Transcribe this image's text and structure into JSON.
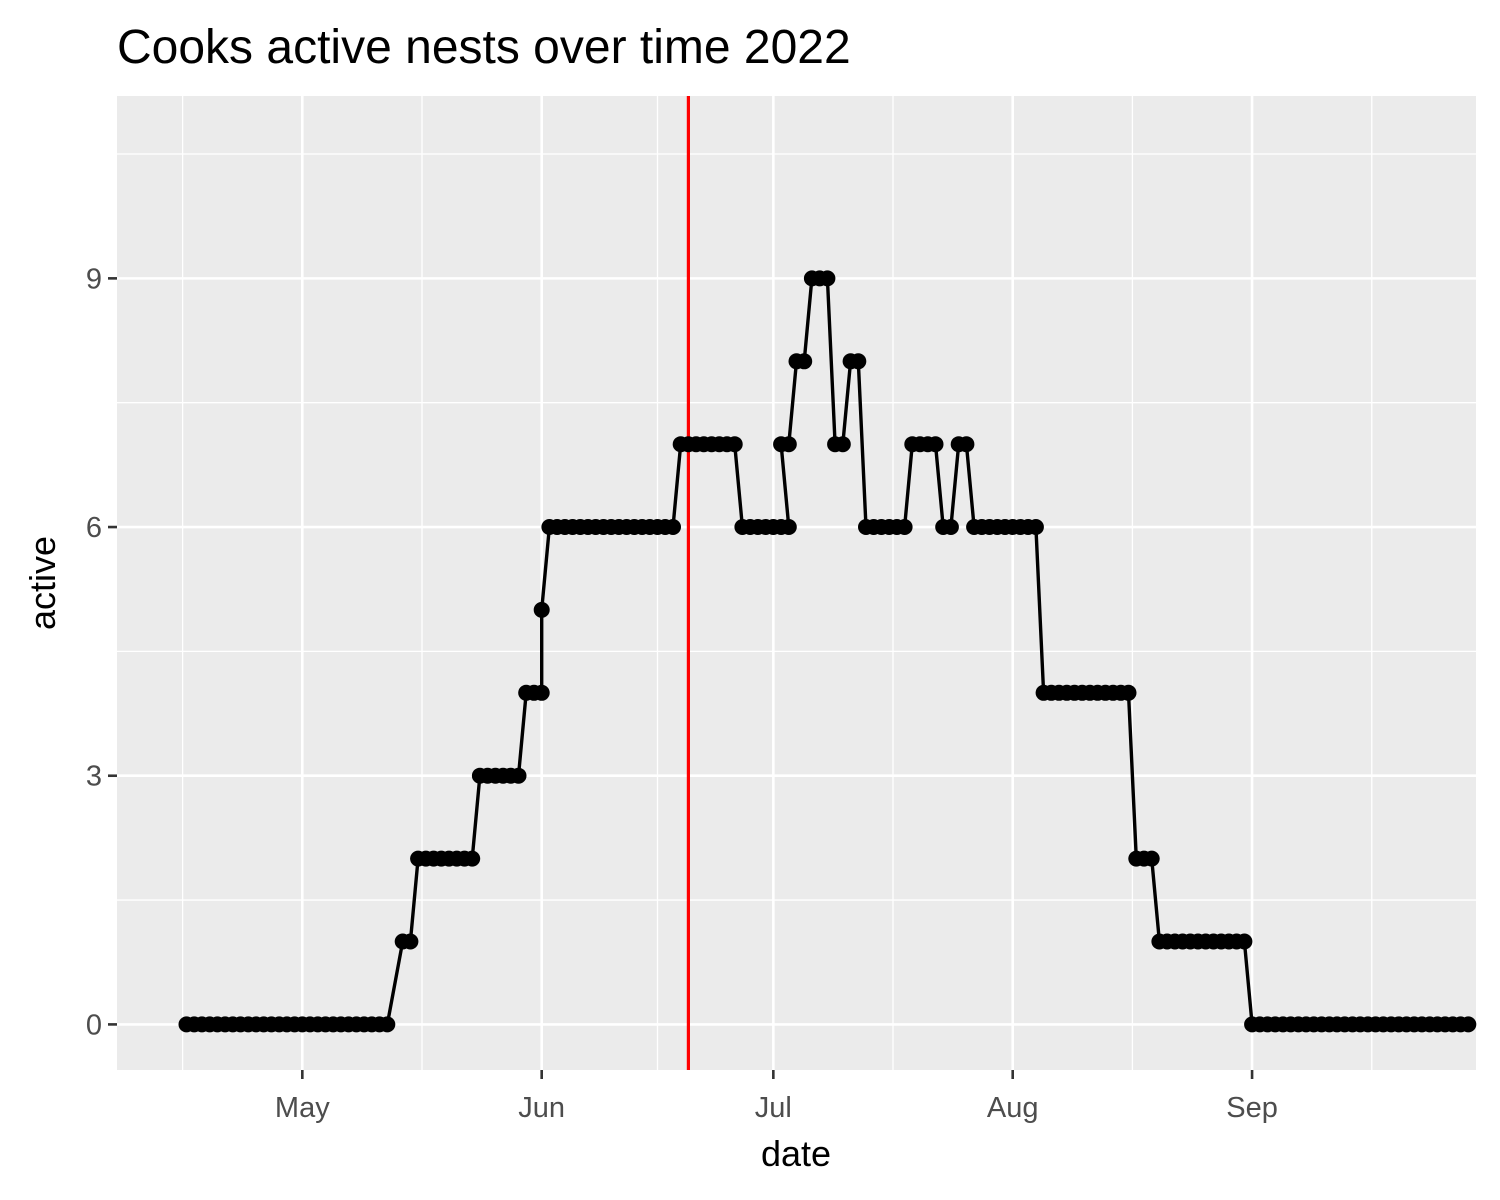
{
  "chart_data": {
    "type": "line",
    "title": "Cooks active nests over time 2022",
    "xlabel": "date",
    "ylabel": "active",
    "xlim": [
      "2022-04-07",
      "2022-09-30"
    ],
    "ylim": [
      -0.55,
      11.2
    ],
    "x_ticks": [
      {
        "date": "2022-05-01",
        "label": "May"
      },
      {
        "date": "2022-06-01",
        "label": "Jun"
      },
      {
        "date": "2022-07-01",
        "label": "Jul"
      },
      {
        "date": "2022-08-01",
        "label": "Aug"
      },
      {
        "date": "2022-09-01",
        "label": "Sep"
      }
    ],
    "y_ticks": [
      0,
      3,
      6,
      9
    ],
    "grid": true,
    "reference_line": {
      "date": "2022-06-20",
      "color": "#ff0000"
    },
    "series": [
      {
        "line_color": "#000000",
        "point_color": "#000000",
        "points": [
          [
            "2022-04-16",
            0
          ],
          [
            "2022-04-17",
            0
          ],
          [
            "2022-04-18",
            0
          ],
          [
            "2022-04-19",
            0
          ],
          [
            "2022-04-20",
            0
          ],
          [
            "2022-04-21",
            0
          ],
          [
            "2022-04-22",
            0
          ],
          [
            "2022-04-23",
            0
          ],
          [
            "2022-04-24",
            0
          ],
          [
            "2022-04-25",
            0
          ],
          [
            "2022-04-26",
            0
          ],
          [
            "2022-04-27",
            0
          ],
          [
            "2022-04-28",
            0
          ],
          [
            "2022-04-29",
            0
          ],
          [
            "2022-04-30",
            0
          ],
          [
            "2022-05-01",
            0
          ],
          [
            "2022-05-02",
            0
          ],
          [
            "2022-05-03",
            0
          ],
          [
            "2022-05-04",
            0
          ],
          [
            "2022-05-05",
            0
          ],
          [
            "2022-05-06",
            0
          ],
          [
            "2022-05-07",
            0
          ],
          [
            "2022-05-08",
            0
          ],
          [
            "2022-05-09",
            0
          ],
          [
            "2022-05-10",
            0
          ],
          [
            "2022-05-11",
            0
          ],
          [
            "2022-05-12",
            0
          ],
          [
            "2022-05-14",
            1
          ],
          [
            "2022-05-15",
            1
          ],
          [
            "2022-05-16",
            2
          ],
          [
            "2022-05-17",
            2
          ],
          [
            "2022-05-18",
            2
          ],
          [
            "2022-05-19",
            2
          ],
          [
            "2022-05-20",
            2
          ],
          [
            "2022-05-21",
            2
          ],
          [
            "2022-05-22",
            2
          ],
          [
            "2022-05-23",
            2
          ],
          [
            "2022-05-24",
            3
          ],
          [
            "2022-05-25",
            3
          ],
          [
            "2022-05-26",
            3
          ],
          [
            "2022-05-27",
            3
          ],
          [
            "2022-05-28",
            3
          ],
          [
            "2022-05-29",
            3
          ],
          [
            "2022-05-30",
            4
          ],
          [
            "2022-05-31",
            4
          ],
          [
            "2022-06-01",
            4
          ],
          [
            "2022-06-01",
            5
          ],
          [
            "2022-06-02",
            6
          ],
          [
            "2022-06-03",
            6
          ],
          [
            "2022-06-04",
            6
          ],
          [
            "2022-06-05",
            6
          ],
          [
            "2022-06-06",
            6
          ],
          [
            "2022-06-07",
            6
          ],
          [
            "2022-06-08",
            6
          ],
          [
            "2022-06-09",
            6
          ],
          [
            "2022-06-10",
            6
          ],
          [
            "2022-06-11",
            6
          ],
          [
            "2022-06-12",
            6
          ],
          [
            "2022-06-13",
            6
          ],
          [
            "2022-06-14",
            6
          ],
          [
            "2022-06-15",
            6
          ],
          [
            "2022-06-16",
            6
          ],
          [
            "2022-06-17",
            6
          ],
          [
            "2022-06-18",
            6
          ],
          [
            "2022-06-19",
            7
          ],
          [
            "2022-06-20",
            7
          ],
          [
            "2022-06-21",
            7
          ],
          [
            "2022-06-22",
            7
          ],
          [
            "2022-06-23",
            7
          ],
          [
            "2022-06-24",
            7
          ],
          [
            "2022-06-25",
            7
          ],
          [
            "2022-06-26",
            7
          ],
          [
            "2022-06-27",
            6
          ],
          [
            "2022-06-28",
            6
          ],
          [
            "2022-06-29",
            6
          ],
          [
            "2022-06-30",
            6
          ],
          [
            "2022-07-01",
            6
          ],
          [
            "2022-07-02",
            6
          ],
          [
            "2022-07-03",
            6
          ],
          [
            "2022-07-02",
            7
          ],
          [
            "2022-07-03",
            7
          ],
          [
            "2022-07-04",
            8
          ],
          [
            "2022-07-05",
            8
          ],
          [
            "2022-07-06",
            9
          ],
          [
            "2022-07-07",
            9
          ],
          [
            "2022-07-08",
            9
          ],
          [
            "2022-07-09",
            7
          ],
          [
            "2022-07-10",
            7
          ],
          [
            "2022-07-11",
            8
          ],
          [
            "2022-07-12",
            8
          ],
          [
            "2022-07-13",
            6
          ],
          [
            "2022-07-14",
            6
          ],
          [
            "2022-07-15",
            6
          ],
          [
            "2022-07-16",
            6
          ],
          [
            "2022-07-17",
            6
          ],
          [
            "2022-07-18",
            6
          ],
          [
            "2022-07-19",
            7
          ],
          [
            "2022-07-20",
            7
          ],
          [
            "2022-07-21",
            7
          ],
          [
            "2022-07-22",
            7
          ],
          [
            "2022-07-23",
            6
          ],
          [
            "2022-07-24",
            6
          ],
          [
            "2022-07-25",
            7
          ],
          [
            "2022-07-26",
            7
          ],
          [
            "2022-07-27",
            6
          ],
          [
            "2022-07-28",
            6
          ],
          [
            "2022-07-29",
            6
          ],
          [
            "2022-07-30",
            6
          ],
          [
            "2022-07-31",
            6
          ],
          [
            "2022-08-01",
            6
          ],
          [
            "2022-08-02",
            6
          ],
          [
            "2022-08-03",
            6
          ],
          [
            "2022-08-04",
            6
          ],
          [
            "2022-08-05",
            4
          ],
          [
            "2022-08-06",
            4
          ],
          [
            "2022-08-07",
            4
          ],
          [
            "2022-08-08",
            4
          ],
          [
            "2022-08-09",
            4
          ],
          [
            "2022-08-10",
            4
          ],
          [
            "2022-08-11",
            4
          ],
          [
            "2022-08-12",
            4
          ],
          [
            "2022-08-13",
            4
          ],
          [
            "2022-08-14",
            4
          ],
          [
            "2022-08-15",
            4
          ],
          [
            "2022-08-16",
            4
          ],
          [
            "2022-08-17",
            2
          ],
          [
            "2022-08-18",
            2
          ],
          [
            "2022-08-19",
            2
          ],
          [
            "2022-08-20",
            1
          ],
          [
            "2022-08-21",
            1
          ],
          [
            "2022-08-22",
            1
          ],
          [
            "2022-08-23",
            1
          ],
          [
            "2022-08-24",
            1
          ],
          [
            "2022-08-25",
            1
          ],
          [
            "2022-08-26",
            1
          ],
          [
            "2022-08-27",
            1
          ],
          [
            "2022-08-28",
            1
          ],
          [
            "2022-08-29",
            1
          ],
          [
            "2022-08-30",
            1
          ],
          [
            "2022-08-31",
            1
          ],
          [
            "2022-09-01",
            0
          ],
          [
            "2022-09-02",
            0
          ],
          [
            "2022-09-03",
            0
          ],
          [
            "2022-09-04",
            0
          ],
          [
            "2022-09-05",
            0
          ],
          [
            "2022-09-06",
            0
          ],
          [
            "2022-09-07",
            0
          ],
          [
            "2022-09-08",
            0
          ],
          [
            "2022-09-09",
            0
          ],
          [
            "2022-09-10",
            0
          ],
          [
            "2022-09-11",
            0
          ],
          [
            "2022-09-12",
            0
          ],
          [
            "2022-09-13",
            0
          ],
          [
            "2022-09-14",
            0
          ],
          [
            "2022-09-15",
            0
          ],
          [
            "2022-09-16",
            0
          ],
          [
            "2022-09-17",
            0
          ],
          [
            "2022-09-18",
            0
          ],
          [
            "2022-09-19",
            0
          ],
          [
            "2022-09-20",
            0
          ],
          [
            "2022-09-21",
            0
          ],
          [
            "2022-09-22",
            0
          ],
          [
            "2022-09-23",
            0
          ],
          [
            "2022-09-24",
            0
          ],
          [
            "2022-09-25",
            0
          ],
          [
            "2022-09-26",
            0
          ],
          [
            "2022-09-27",
            0
          ],
          [
            "2022-09-28",
            0
          ],
          [
            "2022-09-29",
            0
          ]
        ]
      }
    ]
  }
}
